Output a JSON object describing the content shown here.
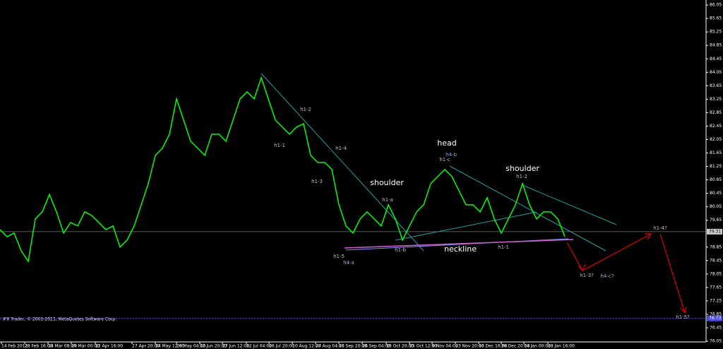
{
  "chart_data": {
    "type": "line",
    "x": [
      0,
      1,
      2,
      3,
      4,
      5,
      6,
      7,
      8,
      9,
      10,
      11,
      12,
      13,
      14,
      15,
      16,
      17,
      18,
      19,
      20,
      21,
      22,
      23,
      24,
      25,
      26,
      27,
      28,
      29,
      30,
      31,
      32,
      33,
      34,
      35,
      36,
      37,
      38,
      39,
      40,
      41,
      42,
      43,
      44,
      45,
      46,
      47,
      48,
      49,
      50,
      51,
      52,
      53,
      54,
      55,
      56,
      57,
      58,
      59,
      60,
      61,
      62,
      63,
      64,
      65,
      66,
      67,
      68,
      69,
      70,
      71,
      72,
      73,
      74,
      75,
      76,
      77,
      78,
      79,
      80
    ],
    "series": [
      {
        "color": "#00ff00",
        "values": [
          79.37,
          79.16,
          79.27,
          78.74,
          78.43,
          79.69,
          79.9,
          80.42,
          79.9,
          79.27,
          79.58,
          79.48,
          79.9,
          79.79,
          79.58,
          79.37,
          79.48,
          78.85,
          79.06,
          79.48,
          80.11,
          80.74,
          81.58,
          81.79,
          82.21,
          83.26,
          82.63,
          82.0,
          81.79,
          81.58,
          82.21,
          82.21,
          82.0,
          82.63,
          83.26,
          83.47,
          83.26,
          83.89,
          83.26,
          82.63,
          82.42,
          82.21,
          82.42,
          82.52,
          81.58,
          81.37,
          81.37,
          81.16,
          80.11,
          79.48,
          79.27,
          79.69,
          79.9,
          79.69,
          79.48,
          80.11,
          79.69,
          79.06,
          79.48,
          79.9,
          80.11,
          80.74,
          80.95,
          81.16,
          80.95,
          80.53,
          80.11,
          80.11,
          79.9,
          80.32,
          79.69,
          79.27,
          79.69,
          80.11,
          80.74,
          80.11,
          79.69,
          79.9,
          79.9,
          79.69,
          79.16
        ]
      }
    ],
    "xlim": [
      0,
      100
    ],
    "xticks": [
      {
        "value": 0.2,
        "label": "14 Feb 2012"
      },
      {
        "value": 3.5,
        "label": "28 Feb 16:00"
      },
      {
        "value": 6.8,
        "label": "14 Mar 08:00"
      },
      {
        "value": 10.1,
        "label": "29 Mar 00:00"
      },
      {
        "value": 13.5,
        "label": "12 Apr 16:00"
      },
      {
        "value": 18.7,
        "label": "27 Apr 20:00"
      },
      {
        "value": 22,
        "label": "14 May 12:00"
      },
      {
        "value": 25,
        "label": "29 May 04:00"
      },
      {
        "value": 28.3,
        "label": "12 Jun 20:00"
      },
      {
        "value": 31.5,
        "label": "27 Jun 12:00"
      },
      {
        "value": 34.9,
        "label": "12 Jul 04:00"
      },
      {
        "value": 38.1,
        "label": "26 Jul 20:00"
      },
      {
        "value": 41.4,
        "label": "10 Aug 12:00"
      },
      {
        "value": 44.7,
        "label": "27 Aug 04:00"
      },
      {
        "value": 48,
        "label": "10 Sep 20:00"
      },
      {
        "value": 51.3,
        "label": "26 Sep 04:00"
      },
      {
        "value": 54.7,
        "label": "10 Oct 20:00"
      },
      {
        "value": 58,
        "label": "25 Oct 12:00"
      },
      {
        "value": 61.2,
        "label": "9 Nov 04:00"
      },
      {
        "value": 64.5,
        "label": "23 Nov 20:00"
      },
      {
        "value": 67.8,
        "label": "10 Dec 16:00"
      },
      {
        "value": 71,
        "label": "26 Dec 20:00"
      },
      {
        "value": 74.2,
        "label": "14 Jan 00:00"
      },
      {
        "value": 77.6,
        "label": "28 Jan 16:00"
      }
    ],
    "ylim": [
      76.03,
      86.2
    ],
    "yticks": [
      86.05,
      85.65,
      85.25,
      84.85,
      84.45,
      84.05,
      83.65,
      83.25,
      82.85,
      82.45,
      82.05,
      81.65,
      81.25,
      80.85,
      80.45,
      80.05,
      79.65,
      78.85,
      78.45,
      78.05,
      77.65,
      77.25,
      76.85,
      76.45,
      76.05
    ],
    "price_line": 79.31,
    "alert_line": 76.73,
    "footer": "IFX Trader, © 2001-2013, MetaQuotes Software Corp.",
    "annotations": [
      "h1-2",
      "h1-1",
      "h1-4",
      "h1-3",
      "shoulder",
      "h1-a",
      "h1-5",
      "h4-a",
      "h1-b",
      "head",
      "h4-b",
      "h1-c",
      "neckline",
      "shoulder",
      "h1-2",
      "h1-1",
      "h1-3?",
      "h4-c?",
      "h1-4?",
      "h1-5?"
    ]
  }
}
